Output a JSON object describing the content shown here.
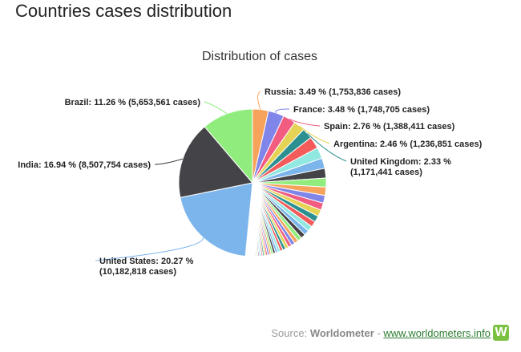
{
  "page": {
    "title": "Countries cases distribution"
  },
  "source": {
    "prefix": "Source:",
    "brand": "Worldometer",
    "separator": "-",
    "link": "www.worldometers.info",
    "logo_letter": "W"
  },
  "chart_data": {
    "type": "pie",
    "title": "Distribution of cases",
    "series": [
      {
        "name": "United States",
        "label": "United States: 20.27 %",
        "label2": "(10,182,818 cases)",
        "percent": 20.27,
        "cases": 10182818,
        "color": "#7cb5ec"
      },
      {
        "name": "India",
        "label": "India: 16.94 % (8,507,754 cases)",
        "percent": 16.94,
        "cases": 8507754,
        "color": "#434348"
      },
      {
        "name": "Brazil",
        "label": "Brazil: 11.26 % (5,653,561 cases)",
        "percent": 11.26,
        "cases": 5653561,
        "color": "#90ed7d"
      },
      {
        "name": "Russia",
        "label": "Russia: 3.49 % (1,753,836 cases)",
        "percent": 3.49,
        "cases": 1753836,
        "color": "#f7a35c"
      },
      {
        "name": "France",
        "label": "France: 3.48 % (1,748,705 cases)",
        "percent": 3.48,
        "cases": 1748705,
        "color": "#8085e9"
      },
      {
        "name": "Spain",
        "label": "Spain: 2.76 % (1,388,411 cases)",
        "percent": 2.76,
        "cases": 1388411,
        "color": "#f15c80"
      },
      {
        "name": "Argentina",
        "label": "Argentina: 2.46 % (1,236,851 cases)",
        "percent": 2.46,
        "cases": 1236851,
        "color": "#e4d354"
      },
      {
        "name": "United Kingdom",
        "label": "United Kingdom: 2.33 %",
        "label2": "(1,171,441 cases)",
        "percent": 2.33,
        "cases": 1171441,
        "color": "#2b908f"
      }
    ],
    "other_colors": [
      "#f45b5b",
      "#91e8e1",
      "#7cb5ec",
      "#434348",
      "#90ed7d",
      "#f7a35c",
      "#8085e9",
      "#f15c80",
      "#e4d354",
      "#2b908f"
    ]
  }
}
